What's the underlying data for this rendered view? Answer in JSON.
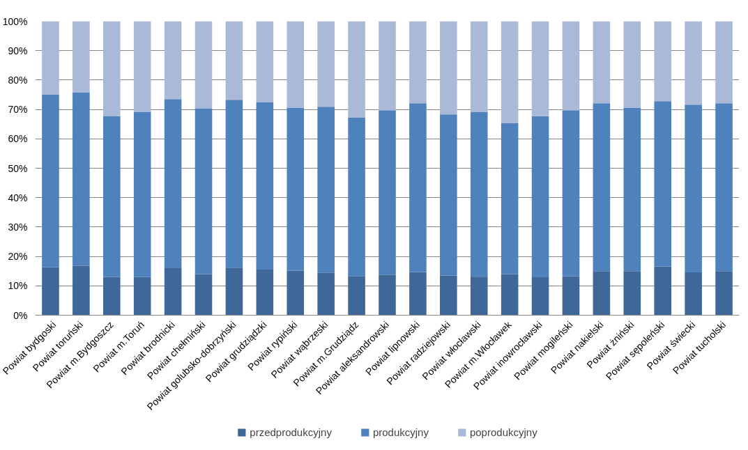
{
  "chart_data": {
    "type": "bar",
    "stacked": true,
    "categories": [
      "Powiat bydgoski",
      "Powiat toruński",
      "Powiat m.Bydgoszcz",
      "Powiat m.Toruń",
      "Powiat brodnicki",
      "Powiat chełmiński",
      "Powiat golubsko-dobrzyński",
      "Powiat grudziądzki",
      "Powiat rypiński",
      "Powiat wąbrzeski",
      "Powiat m.Grudziądz",
      "Powiat aleksandrowski",
      "Powiat lipnowski",
      "Powiat radziejowski",
      "Powiat włocławski",
      "Powiat m.Włocławek",
      "Powiat inowrocławski",
      "Powiat mogileński",
      "Powiat nakielski",
      "Powiat żniński",
      "Powiat sępoleński",
      "Powiat świecki",
      "Powiat tucholski"
    ],
    "series": [
      {
        "name": "przedprodukcyjny",
        "color": "#3f6899",
        "values": [
          16.3,
          16.8,
          13.0,
          13.0,
          16.0,
          14.0,
          16.2,
          15.5,
          15.1,
          14.5,
          13.3,
          13.8,
          14.7,
          13.5,
          12.9,
          13.9,
          12.9,
          13.2,
          15.0,
          15.0,
          16.6,
          14.6,
          15.0
        ]
      },
      {
        "name": "produkcyjny",
        "color": "#4f81bd",
        "values": [
          58.8,
          58.9,
          54.8,
          56.2,
          57.5,
          56.4,
          57.1,
          56.9,
          55.5,
          56.4,
          53.9,
          55.9,
          57.4,
          54.8,
          56.3,
          51.4,
          54.8,
          56.5,
          57.1,
          55.6,
          56.2,
          57.0,
          57.1
        ]
      },
      {
        "name": "poprodukcyjny",
        "color": "#aab9d7",
        "values": [
          24.9,
          24.3,
          32.2,
          30.8,
          26.5,
          29.6,
          26.7,
          27.6,
          29.4,
          29.1,
          32.8,
          30.3,
          27.9,
          31.7,
          30.8,
          34.7,
          32.3,
          30.3,
          27.9,
          29.4,
          27.2,
          28.4,
          27.9
        ]
      }
    ],
    "ylim": [
      0,
      100
    ],
    "yticks": [
      {
        "value": 0,
        "label": "0%"
      },
      {
        "value": 10,
        "label": "10%"
      },
      {
        "value": 20,
        "label": "20%"
      },
      {
        "value": 30,
        "label": "30%"
      },
      {
        "value": 40,
        "label": "40%"
      },
      {
        "value": 50,
        "label": "50%"
      },
      {
        "value": 60,
        "label": "60%"
      },
      {
        "value": 70,
        "label": "70%"
      },
      {
        "value": 80,
        "label": "80%"
      },
      {
        "value": 90,
        "label": "90%"
      },
      {
        "value": 100,
        "label": "100%"
      }
    ],
    "grid": "y",
    "legend": "bottom"
  }
}
